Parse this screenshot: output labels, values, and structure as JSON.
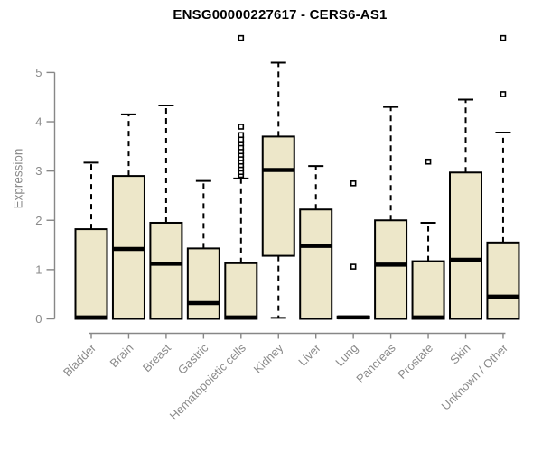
{
  "title": "ENSG00000227617 - CERS6-AS1",
  "chart_data": {
    "type": "boxplot",
    "title": "ENSG00000227617 - CERS6-AS1",
    "xlabel": "",
    "ylabel": "Expression",
    "ylim": [
      0,
      5.8
    ],
    "yticks": [
      0,
      1,
      2,
      3,
      4,
      5
    ],
    "grid": false,
    "legend": false,
    "colors": {
      "box_fill": "#EDE7C9",
      "box_border": "#000000",
      "median_line": "#000000",
      "whisker": "#000000",
      "outlier_stroke": "#000000",
      "outlier_fill": "#ffffff",
      "axis": "#878787",
      "label_text": "#8a8a8a",
      "title_text": "#000000"
    },
    "categories": [
      "Bladder",
      "Brain",
      "Breast",
      "Gastric",
      "Hematopoietic cells",
      "Kidney",
      "Liver",
      "Lung",
      "Pancreas",
      "Prostate",
      "Skin",
      "Unknown / Other"
    ],
    "boxes": [
      {
        "label": "Bladder",
        "whisker_low": 0,
        "q1": 0,
        "median": 0.03,
        "q3": 1.82,
        "whisker_high": 3.17,
        "outliers": []
      },
      {
        "label": "Brain",
        "whisker_low": 0,
        "q1": 0,
        "median": 1.42,
        "q3": 2.9,
        "whisker_high": 4.15,
        "outliers": []
      },
      {
        "label": "Breast",
        "whisker_low": 0,
        "q1": 0,
        "median": 1.12,
        "q3": 1.95,
        "whisker_high": 4.33,
        "outliers": []
      },
      {
        "label": "Gastric",
        "whisker_low": 0,
        "q1": 0,
        "median": 0.32,
        "q3": 1.43,
        "whisker_high": 2.8,
        "outliers": []
      },
      {
        "label": "Hematopoietic cells",
        "whisker_low": 0,
        "q1": 0,
        "median": 0.03,
        "q3": 1.13,
        "whisker_high": 2.85,
        "outliers": [
          2.92,
          2.98,
          3.05,
          3.12,
          3.19,
          3.26,
          3.33,
          3.4,
          3.48,
          3.56,
          3.64,
          3.73,
          3.9,
          5.7
        ]
      },
      {
        "label": "Kidney",
        "whisker_low": 0.02,
        "q1": 1.28,
        "median": 3.02,
        "q3": 3.7,
        "whisker_high": 5.2,
        "outliers": []
      },
      {
        "label": "Liver",
        "whisker_low": 0,
        "q1": 0,
        "median": 1.48,
        "q3": 2.22,
        "whisker_high": 3.1,
        "outliers": []
      },
      {
        "label": "Lung",
        "whisker_low": 0,
        "q1": 0.01,
        "median": 0.03,
        "q3": 0.05,
        "whisker_high": 0.05,
        "outliers": [
          1.06,
          2.75
        ]
      },
      {
        "label": "Pancreas",
        "whisker_low": 0,
        "q1": 0,
        "median": 1.1,
        "q3": 2.0,
        "whisker_high": 4.3,
        "outliers": []
      },
      {
        "label": "Prostate",
        "whisker_low": 0,
        "q1": 0,
        "median": 0.03,
        "q3": 1.17,
        "whisker_high": 1.95,
        "outliers": [
          3.19
        ]
      },
      {
        "label": "Skin",
        "whisker_low": 0,
        "q1": 0,
        "median": 1.2,
        "q3": 2.97,
        "whisker_high": 4.45,
        "outliers": []
      },
      {
        "label": "Unknown / Other",
        "whisker_low": 0,
        "q1": 0,
        "median": 0.45,
        "q3": 1.55,
        "whisker_high": 3.78,
        "outliers": [
          4.56,
          5.7
        ]
      }
    ]
  }
}
